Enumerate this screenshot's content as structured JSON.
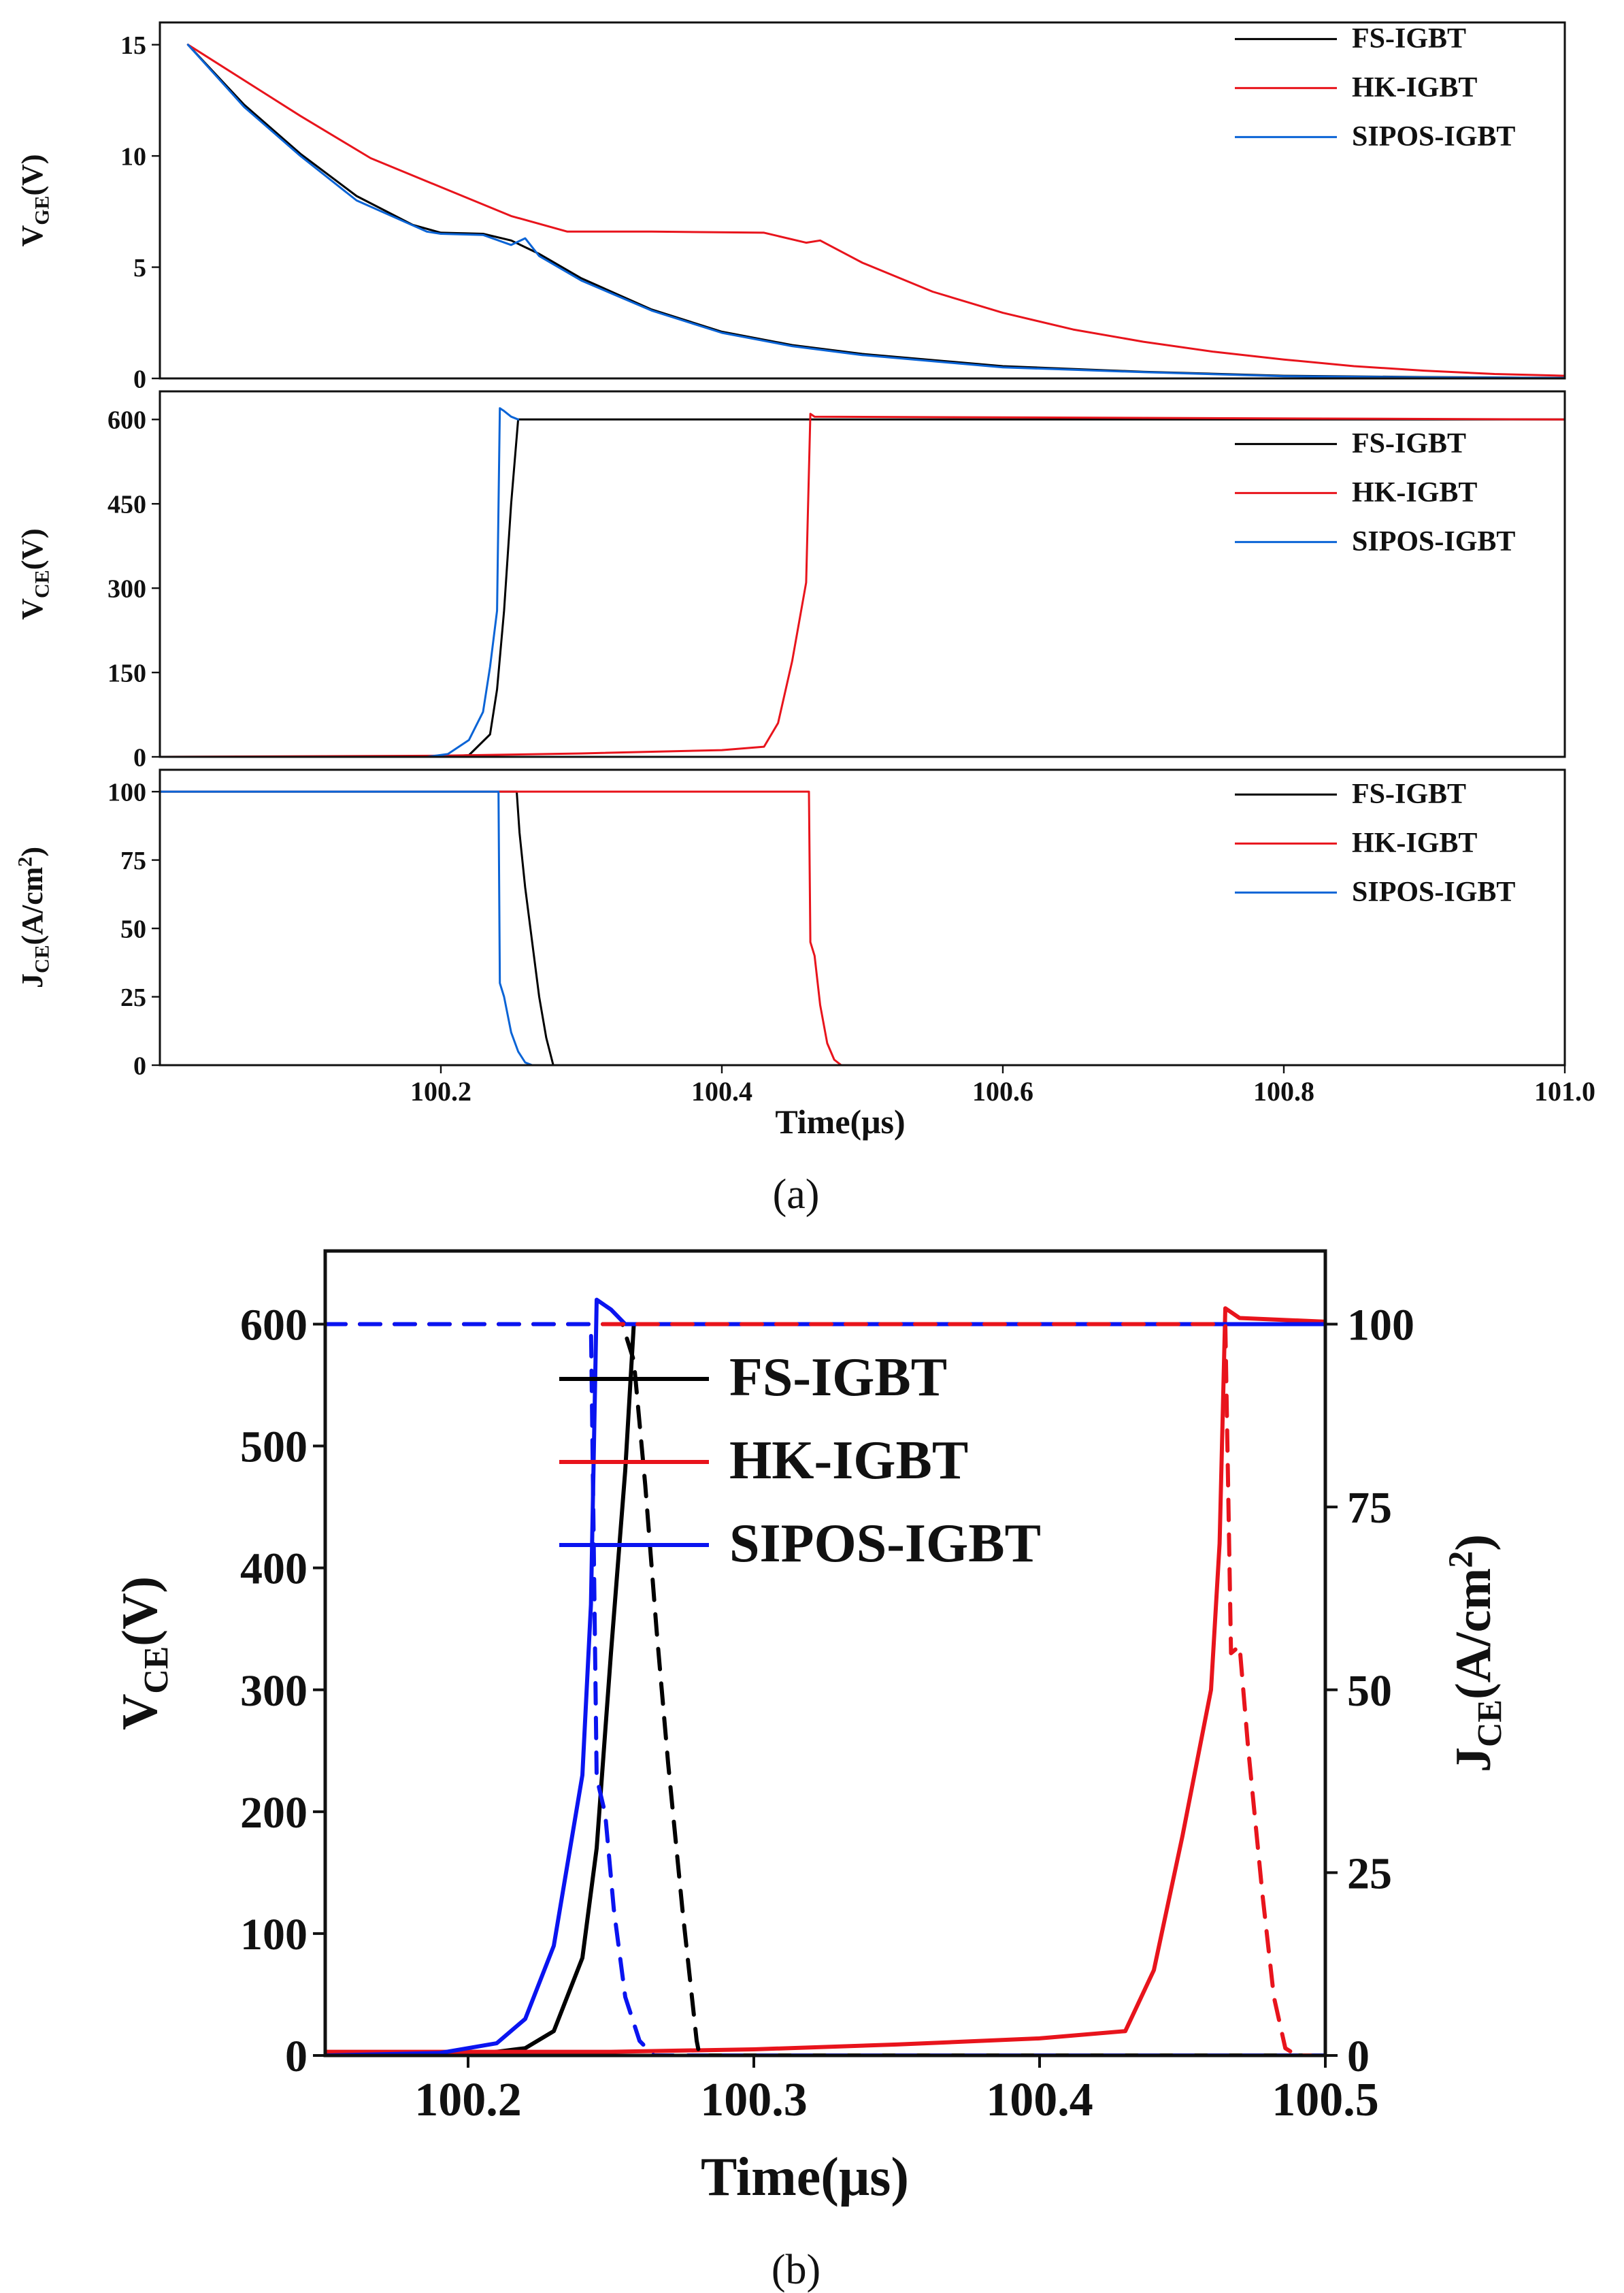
{
  "colors": {
    "FS-IGBT": "#000000",
    "HK-IGBT": "#e8141c",
    "SIPOS-IGBT": "#0b64d6",
    "SIPOS-IGBT-b": "#0a14f0"
  },
  "captions": {
    "a": "(a)",
    "b": "(b)"
  },
  "chart_data": [
    {
      "id": "a-vge",
      "type": "line",
      "panel": "a",
      "ylabel": {
        "main": "V",
        "sub": "GE",
        "tail": "(V)"
      },
      "xlim": [
        100.0,
        101.0
      ],
      "ylim": [
        0,
        16
      ],
      "yticks": [
        0,
        5,
        10,
        15
      ],
      "legend": {
        "placement": "top-right"
      },
      "series": [
        {
          "name": "FS-IGBT",
          "points": [
            [
              100.02,
              15
            ],
            [
              100.06,
              12.3
            ],
            [
              100.1,
              10.1
            ],
            [
              100.14,
              8.2
            ],
            [
              100.18,
              6.9
            ],
            [
              100.2,
              6.55
            ],
            [
              100.23,
              6.5
            ],
            [
              100.25,
              6.2
            ],
            [
              100.27,
              5.6
            ],
            [
              100.3,
              4.5
            ],
            [
              100.35,
              3.1
            ],
            [
              100.4,
              2.1
            ],
            [
              100.45,
              1.5
            ],
            [
              100.5,
              1.1
            ],
            [
              100.6,
              0.55
            ],
            [
              100.7,
              0.3
            ],
            [
              100.8,
              0.12
            ],
            [
              100.9,
              0.06
            ],
            [
              101.0,
              0.02
            ]
          ]
        },
        {
          "name": "HK-IGBT",
          "points": [
            [
              100.02,
              15
            ],
            [
              100.1,
              11.8
            ],
            [
              100.15,
              9.9
            ],
            [
              100.2,
              8.6
            ],
            [
              100.25,
              7.3
            ],
            [
              100.29,
              6.6
            ],
            [
              100.35,
              6.6
            ],
            [
              100.43,
              6.55
            ],
            [
              100.46,
              6.1
            ],
            [
              100.47,
              6.2
            ],
            [
              100.5,
              5.2
            ],
            [
              100.55,
              3.9
            ],
            [
              100.6,
              2.95
            ],
            [
              100.65,
              2.2
            ],
            [
              100.7,
              1.65
            ],
            [
              100.75,
              1.2
            ],
            [
              100.8,
              0.85
            ],
            [
              100.85,
              0.55
            ],
            [
              100.9,
              0.35
            ],
            [
              100.95,
              0.2
            ],
            [
              101.0,
              0.12
            ]
          ]
        },
        {
          "name": "SIPOS-IGBT",
          "points": [
            [
              100.02,
              15
            ],
            [
              100.06,
              12.2
            ],
            [
              100.1,
              10.0
            ],
            [
              100.14,
              8.0
            ],
            [
              100.19,
              6.6
            ],
            [
              100.2,
              6.5
            ],
            [
              100.23,
              6.45
            ],
            [
              100.25,
              6.0
            ],
            [
              100.26,
              6.3
            ],
            [
              100.27,
              5.5
            ],
            [
              100.3,
              4.4
            ],
            [
              100.35,
              3.05
            ],
            [
              100.4,
              2.05
            ],
            [
              100.45,
              1.45
            ],
            [
              100.5,
              1.05
            ],
            [
              100.6,
              0.5
            ],
            [
              100.7,
              0.28
            ],
            [
              100.8,
              0.1
            ],
            [
              100.9,
              0.05
            ],
            [
              101.0,
              0.02
            ]
          ]
        }
      ]
    },
    {
      "id": "a-vce",
      "type": "line",
      "panel": "a",
      "ylabel": {
        "main": "V",
        "sub": "CE",
        "tail": "(V)"
      },
      "xlim": [
        100.0,
        101.0
      ],
      "ylim": [
        0,
        650
      ],
      "yticks": [
        0,
        150,
        300,
        450,
        600
      ],
      "legend": {
        "placement": "top-right"
      },
      "series": [
        {
          "name": "FS-IGBT",
          "points": [
            [
              100.0,
              0
            ],
            [
              100.2,
              0
            ],
            [
              100.22,
              3
            ],
            [
              100.235,
              40
            ],
            [
              100.24,
              120
            ],
            [
              100.245,
              260
            ],
            [
              100.25,
              450
            ],
            [
              100.255,
              600
            ],
            [
              101.0,
              600
            ]
          ]
        },
        {
          "name": "HK-IGBT",
          "points": [
            [
              100.0,
              0
            ],
            [
              100.2,
              2
            ],
            [
              100.3,
              6
            ],
            [
              100.4,
              12
            ],
            [
              100.43,
              18
            ],
            [
              100.44,
              60
            ],
            [
              100.45,
              170
            ],
            [
              100.46,
              310
            ],
            [
              100.463,
              610
            ],
            [
              100.466,
              605
            ],
            [
              101.0,
              600
            ]
          ]
        },
        {
          "name": "SIPOS-IGBT",
          "points": [
            [
              100.0,
              0
            ],
            [
              100.19,
              0
            ],
            [
              100.205,
              5
            ],
            [
              100.22,
              30
            ],
            [
              100.23,
              80
            ],
            [
              100.235,
              160
            ],
            [
              100.24,
              260
            ],
            [
              100.242,
              620
            ],
            [
              100.245,
              615
            ],
            [
              100.25,
              605
            ],
            [
              100.255,
              600
            ]
          ]
        }
      ]
    },
    {
      "id": "a-jce",
      "type": "line",
      "panel": "a",
      "ylabel": {
        "main": "J",
        "sub": "CE",
        "tail": "(A/cm",
        "sup": "2",
        "close": ")"
      },
      "xlabel": "Time(μs)",
      "xlim": [
        100.0,
        101.0
      ],
      "ylim": [
        0,
        108
      ],
      "yticks": [
        0,
        25,
        50,
        75,
        100
      ],
      "xticks": [
        100.2,
        100.4,
        100.6,
        100.8,
        101.0
      ],
      "legend": {
        "placement": "top-right"
      },
      "series": [
        {
          "name": "FS-IGBT",
          "points": [
            [
              100.0,
              100
            ],
            [
              100.254,
              100
            ],
            [
              100.256,
              85
            ],
            [
              100.26,
              65
            ],
            [
              100.265,
              45
            ],
            [
              100.27,
              25
            ],
            [
              100.275,
              10
            ],
            [
              100.28,
              0
            ],
            [
              101.0,
              0
            ]
          ]
        },
        {
          "name": "HK-IGBT",
          "points": [
            [
              100.0,
              100
            ],
            [
              100.462,
              100
            ],
            [
              100.463,
              45
            ],
            [
              100.466,
              40
            ],
            [
              100.47,
              22
            ],
            [
              100.475,
              8
            ],
            [
              100.48,
              2
            ],
            [
              100.485,
              0
            ],
            [
              101.0,
              0
            ]
          ]
        },
        {
          "name": "SIPOS-IGBT",
          "points": [
            [
              100.0,
              100
            ],
            [
              100.241,
              100
            ],
            [
              100.242,
              30
            ],
            [
              100.245,
              25
            ],
            [
              100.25,
              12
            ],
            [
              100.255,
              5
            ],
            [
              100.26,
              1
            ],
            [
              100.265,
              0
            ]
          ]
        }
      ]
    },
    {
      "id": "b-vce-jce",
      "type": "line",
      "panel": "b",
      "ylabel": {
        "main": "V",
        "sub": "CE",
        "tail": "(V)"
      },
      "ylabel_right": {
        "main": "J",
        "sub": "CE",
        "tail": "(A/cm",
        "sup": "2",
        "close": ")"
      },
      "xlabel": "Time(μs)",
      "xlim": [
        100.15,
        100.5
      ],
      "ylim": [
        0,
        660
      ],
      "ylim_right": [
        0,
        110
      ],
      "xticks": [
        100.2,
        100.3,
        100.4,
        100.5
      ],
      "yticks": [
        0,
        100,
        200,
        300,
        400,
        500,
        600
      ],
      "yticks_right": [
        0,
        25,
        50,
        75,
        100
      ],
      "legend": {
        "placement": "top-center"
      },
      "series": [
        {
          "name": "FS-IGBT",
          "quantity": "VCE",
          "points": [
            [
              100.15,
              0
            ],
            [
              100.2,
              0
            ],
            [
              100.22,
              6
            ],
            [
              100.23,
              20
            ],
            [
              100.24,
              80
            ],
            [
              100.245,
              170
            ],
            [
              100.25,
              330
            ],
            [
              100.255,
              480
            ],
            [
              100.258,
              600
            ],
            [
              100.5,
              600
            ]
          ]
        },
        {
          "name": "HK-IGBT",
          "quantity": "VCE",
          "points": [
            [
              100.15,
              3
            ],
            [
              100.25,
              3
            ],
            [
              100.3,
              5
            ],
            [
              100.35,
              9
            ],
            [
              100.4,
              14
            ],
            [
              100.43,
              20
            ],
            [
              100.44,
              70
            ],
            [
              100.45,
              180
            ],
            [
              100.46,
              300
            ],
            [
              100.463,
              420
            ],
            [
              100.465,
              613
            ],
            [
              100.47,
              605
            ],
            [
              100.5,
              602
            ]
          ]
        },
        {
          "name": "SIPOS-IGBT",
          "quantity": "VCE",
          "points": [
            [
              100.15,
              0
            ],
            [
              100.19,
              2
            ],
            [
              100.21,
              10
            ],
            [
              100.22,
              30
            ],
            [
              100.23,
              90
            ],
            [
              100.24,
              230
            ],
            [
              100.243,
              370
            ],
            [
              100.245,
              620
            ],
            [
              100.25,
              612
            ],
            [
              100.255,
              600
            ],
            [
              100.5,
              600
            ]
          ]
        },
        {
          "name": "FS-IGBT",
          "quantity": "JCE",
          "dashed": true,
          "points": [
            [
              100.15,
              100
            ],
            [
              100.254,
              100
            ],
            [
              100.258,
              95
            ],
            [
              100.262,
              78
            ],
            [
              100.266,
              58
            ],
            [
              100.27,
              40
            ],
            [
              100.275,
              20
            ],
            [
              100.28,
              2
            ],
            [
              100.281,
              0
            ],
            [
              100.5,
              0
            ]
          ]
        },
        {
          "name": "HK-IGBT",
          "quantity": "JCE",
          "dashed": true,
          "points": [
            [
              100.15,
              100
            ],
            [
              100.465,
              100
            ],
            [
              100.467,
              55
            ],
            [
              100.47,
              56
            ],
            [
              100.473,
              42
            ],
            [
              100.478,
              22
            ],
            [
              100.482,
              8
            ],
            [
              100.486,
              1
            ],
            [
              100.49,
              0
            ],
            [
              100.5,
              0
            ]
          ]
        },
        {
          "name": "SIPOS-IGBT",
          "quantity": "JCE",
          "dashed": true,
          "points": [
            [
              100.15,
              100
            ],
            [
              100.243,
              100
            ],
            [
              100.245,
              38
            ],
            [
              100.248,
              33
            ],
            [
              100.251,
              20
            ],
            [
              100.255,
              8
            ],
            [
              100.26,
              2
            ],
            [
              100.265,
              0
            ],
            [
              100.5,
              0
            ]
          ]
        }
      ]
    }
  ]
}
